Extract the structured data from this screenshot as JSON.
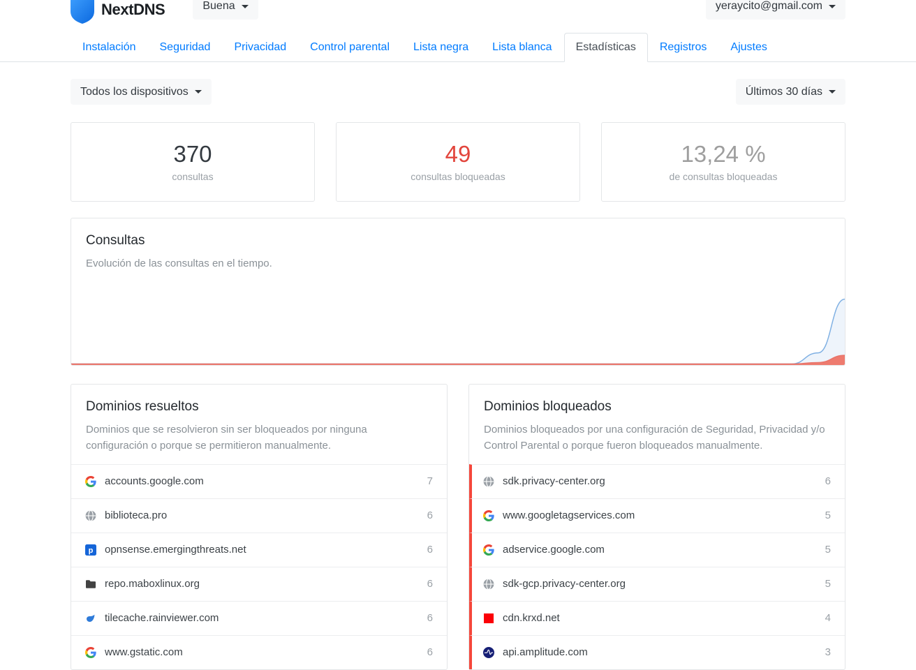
{
  "header": {
    "brand": "NextDNS",
    "config_selector": "Buena",
    "account_email": "yeraycito@gmail.com"
  },
  "nav": {
    "tabs": [
      {
        "label": "Instalación",
        "active": false
      },
      {
        "label": "Seguridad",
        "active": false
      },
      {
        "label": "Privacidad",
        "active": false
      },
      {
        "label": "Control parental",
        "active": false
      },
      {
        "label": "Lista negra",
        "active": false
      },
      {
        "label": "Lista blanca",
        "active": false
      },
      {
        "label": "Estadísticas",
        "active": true
      },
      {
        "label": "Registros",
        "active": false
      },
      {
        "label": "Ajustes",
        "active": false
      }
    ]
  },
  "filters": {
    "devices": "Todos los dispositivos",
    "period": "Últimos 30 días"
  },
  "stats": [
    {
      "value": "370",
      "label": "consultas",
      "color": "#343a40"
    },
    {
      "value": "49",
      "label": "consultas bloqueadas",
      "color": "#e2453c"
    },
    {
      "value": "13,24 %",
      "label": "de consultas bloqueadas",
      "color": "#9e9e9e"
    }
  ],
  "queries_chart": {
    "title": "Consultas",
    "subtitle": "Evolución de las consultas en el tiempo.",
    "colors": {
      "total_line": "#7fb0e3",
      "total_fill": "#eef4fb",
      "blocked_line": "#e8746a",
      "blocked_fill": "#ee7b6f"
    }
  },
  "chart_data": {
    "type": "area",
    "title": "Consultas",
    "xlabel": "",
    "ylabel": "",
    "x_days": 30,
    "legend": "none",
    "grid": false,
    "axes_hidden": true,
    "series": [
      {
        "name": "consultas",
        "values": [
          0,
          0,
          0,
          0,
          0,
          0,
          0,
          0,
          0,
          0,
          0,
          0,
          0,
          0,
          0,
          0,
          0,
          0,
          0,
          0,
          0,
          0,
          0,
          0,
          0,
          0,
          0,
          0,
          54,
          316
        ]
      },
      {
        "name": "consultas bloqueadas",
        "values": [
          0,
          0,
          0,
          0,
          0,
          0,
          0,
          0,
          0,
          0,
          0,
          0,
          0,
          0,
          0,
          0,
          0,
          0,
          0,
          0,
          0,
          0,
          0,
          0,
          0,
          0,
          0,
          0,
          7,
          42
        ]
      }
    ],
    "ylim": [
      0,
      330
    ]
  },
  "resolved": {
    "title": "Dominios resueltos",
    "description": "Dominios que se resolvieron sin ser bloqueados por ninguna configuración o porque se permitieron manualmente.",
    "rows": [
      {
        "domain": "accounts.google.com",
        "count": "7",
        "icon": "google"
      },
      {
        "domain": "biblioteca.pro",
        "count": "6",
        "icon": "globe"
      },
      {
        "domain": "opnsense.emergingthreats.net",
        "count": "6",
        "icon": "proofpoint"
      },
      {
        "domain": "repo.maboxlinux.org",
        "count": "6",
        "icon": "folder"
      },
      {
        "domain": "tilecache.rainviewer.com",
        "count": "6",
        "icon": "rainviewer"
      },
      {
        "domain": "www.gstatic.com",
        "count": "6",
        "icon": "google"
      }
    ]
  },
  "blocked": {
    "title": "Dominios bloqueados",
    "description": "Dominios bloqueados por una configuración de Seguridad, Privacidad y/o Control Parental o porque fueron bloqueados manualmente.",
    "accent": "#f5473b",
    "rows": [
      {
        "domain": "sdk.privacy-center.org",
        "count": "6",
        "icon": "globe"
      },
      {
        "domain": "www.googletagservices.com",
        "count": "5",
        "icon": "google"
      },
      {
        "domain": "adservice.google.com",
        "count": "5",
        "icon": "google"
      },
      {
        "domain": "sdk-gcp.privacy-center.org",
        "count": "5",
        "icon": "globe"
      },
      {
        "domain": "cdn.krxd.net",
        "count": "4",
        "icon": "redsquare"
      },
      {
        "domain": "api.amplitude.com",
        "count": "3",
        "icon": "amplitude"
      }
    ]
  }
}
